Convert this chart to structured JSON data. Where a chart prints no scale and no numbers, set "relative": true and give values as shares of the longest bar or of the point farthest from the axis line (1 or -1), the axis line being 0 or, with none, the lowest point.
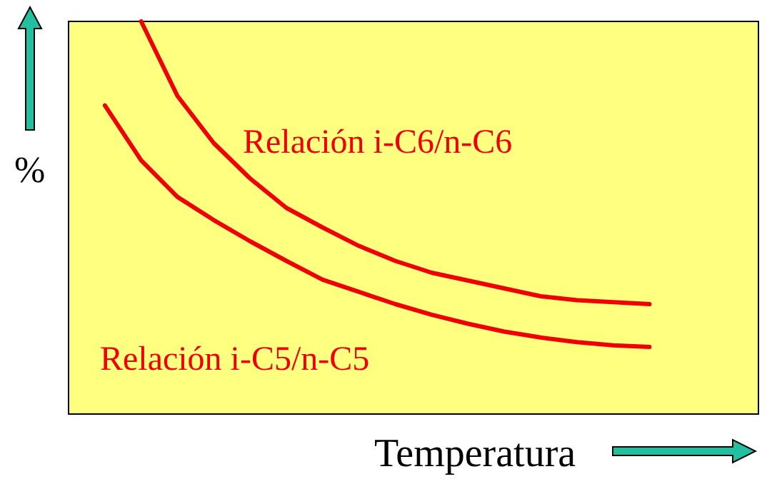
{
  "chart_data": {
    "type": "line",
    "relative": true,
    "xlabel": "Temperatura",
    "ylabel": "%",
    "marker": "none",
    "line_style": "solid",
    "categories": [
      null,
      null,
      null,
      null,
      null,
      null,
      null,
      null,
      null,
      null,
      null,
      null,
      null,
      null,
      null,
      null,
      null,
      null,
      null,
      null
    ],
    "series": [
      {
        "name": "Relación i-C6/n-C6",
        "color": "#f00000",
        "values": [
          null,
          null,
          1.0,
          0.81,
          0.69,
          0.6,
          0.525,
          0.475,
          0.428,
          0.39,
          0.36,
          0.34,
          0.32,
          0.3,
          0.29,
          0.285,
          0.28,
          null,
          null,
          null
        ]
      },
      {
        "name": "Relación i-C5/n-C5",
        "color": "#f00000",
        "values": [
          null,
          0.786,
          0.646,
          0.553,
          0.494,
          0.44,
          0.39,
          0.342,
          0.311,
          0.28,
          0.253,
          0.23,
          0.21,
          0.195,
          0.183,
          0.175,
          0.171,
          null,
          null,
          null
        ]
      }
    ]
  }
}
